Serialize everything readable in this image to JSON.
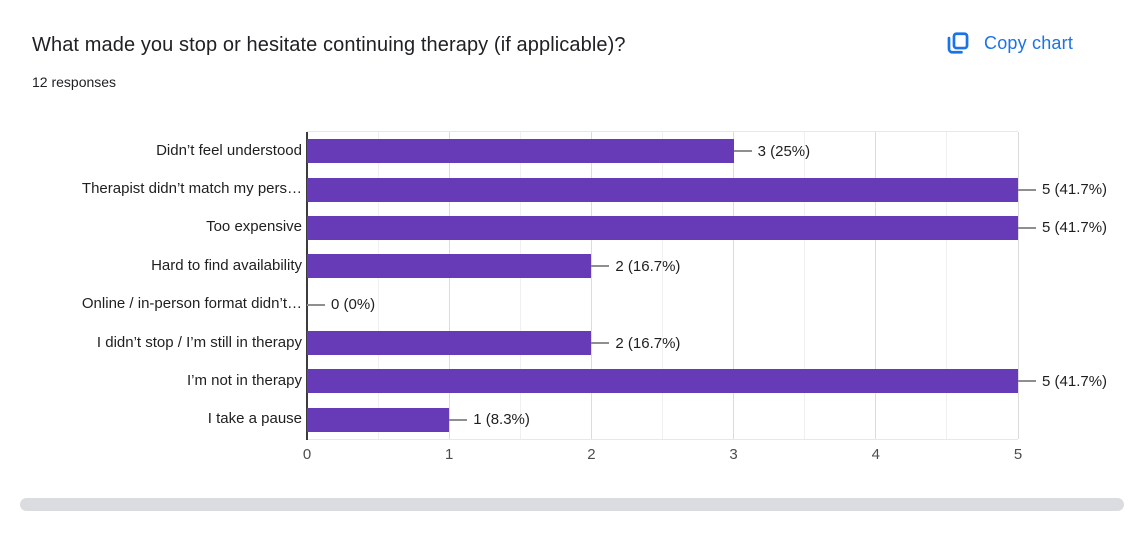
{
  "header": {
    "title": "What made you stop or hesitate continuing therapy (if applicable)?",
    "responses": "12 responses",
    "copy_button": {
      "label": "Copy chart",
      "icon": "copy-chart-icon",
      "color": "#1a73e8"
    }
  },
  "chart_data": {
    "type": "bar",
    "orientation": "horizontal",
    "title": "What made you stop or hesitate continuing therapy (if applicable)?",
    "subtitle": "12 responses",
    "categories": [
      "Didn’t feel understood",
      "Therapist didn’t match my pers…",
      "Too expensive",
      "Hard to find availability",
      "Online / in-person format didn’t…",
      "I didn’t stop / I’m still in therapy",
      "I’m not in therapy",
      "I take a pause"
    ],
    "values": [
      3,
      5,
      5,
      2,
      0,
      2,
      5,
      1
    ],
    "value_labels": [
      "3 (25%)",
      "5 (41.7%)",
      "5 (41.7%)",
      "2 (16.7%)",
      "0 (0%)",
      "2 (16.7%)",
      "5 (41.7%)",
      "1 (8.3%)"
    ],
    "x_ticks": [
      0,
      1,
      2,
      3,
      4,
      5
    ],
    "x_tick_labels": [
      "0",
      "1",
      "2",
      "3",
      "4",
      "5"
    ],
    "xlim": [
      0,
      5
    ],
    "grid": "vertical, minor step 0.5, major step 1",
    "legend": "none",
    "bar_color": "#673ab7",
    "axis_color": "#3c3c3c",
    "connector_color": "#8f8f8f"
  }
}
